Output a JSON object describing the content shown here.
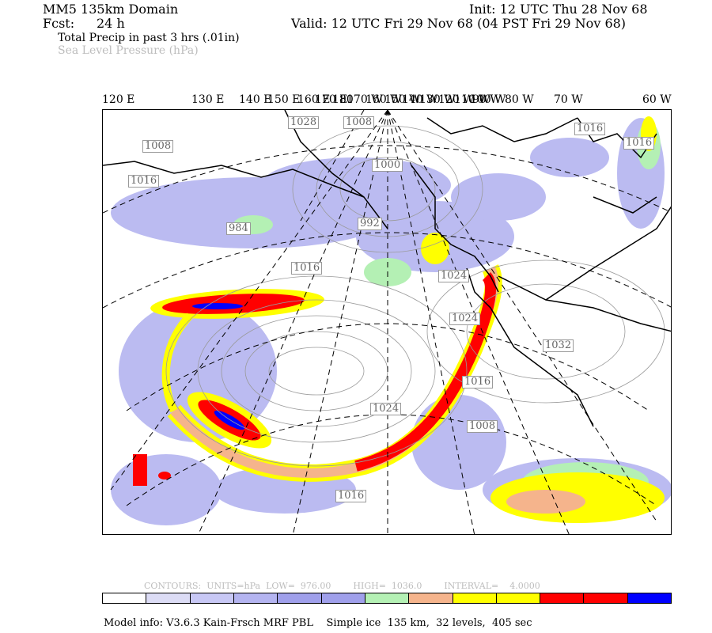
{
  "header": {
    "model_domain": "MM5 135km Domain",
    "fcst_label": "Fcst:",
    "fcst_value": "24 h",
    "init": "Init: 12 UTC Thu 28 Nov 68",
    "valid": "Valid: 12 UTC Fri 29 Nov 68 (04 PST Fri 29 Nov 68)",
    "field1": "Total Precip in past 3 hrs (.01in)",
    "field2": "Sea Level Pressure (hPa)"
  },
  "longitude_labels": [
    "120 E",
    "130 E",
    "140 E",
    "150 E",
    "160 E",
    "170 E",
    "180",
    "170 W",
    "160 W",
    "150 W",
    "140 W",
    "130 W",
    "120 W",
    "110 W",
    "100 W",
    "90 W",
    "80 W",
    "70 W",
    "60 W"
  ],
  "isobar_labels": [
    "1028",
    "1008",
    "1008",
    "1016",
    "1000",
    "992",
    "984",
    "1016",
    "1016",
    "1016",
    "1024",
    "1024",
    "1032",
    "1024",
    "1016",
    "1008",
    "1016"
  ],
  "contour_info": {
    "text": "CONTOURS:  UNITS=hPa  LOW=  976.00        HIGH=  1036.0        INTERVAL=    4.0000"
  },
  "colorbar": {
    "colors": [
      "#ffffff",
      "#dcdcf5",
      "#c8c8f5",
      "#b4b4f0",
      "#a0a0eb",
      "#a0a0eb",
      "#b4f0b4",
      "#f5b48c",
      "#ffff00",
      "#ffff00",
      "#ff0000",
      "#ff0000",
      "#0000ff"
    ]
  },
  "footer": {
    "model_info": "Model info: V3.6.3 Kain-Frsch MRF PBL    Simple ice  135 km,  32 levels,  405 sec"
  },
  "colors": {
    "precip_light": "#b4b4f0",
    "precip_green": "#b4f0b4",
    "precip_orange": "#f5b48c",
    "precip_yellow": "#ffff00",
    "precip_red": "#ff0000",
    "precip_blue": "#0000ff",
    "isobar": "#9a9a9a"
  }
}
